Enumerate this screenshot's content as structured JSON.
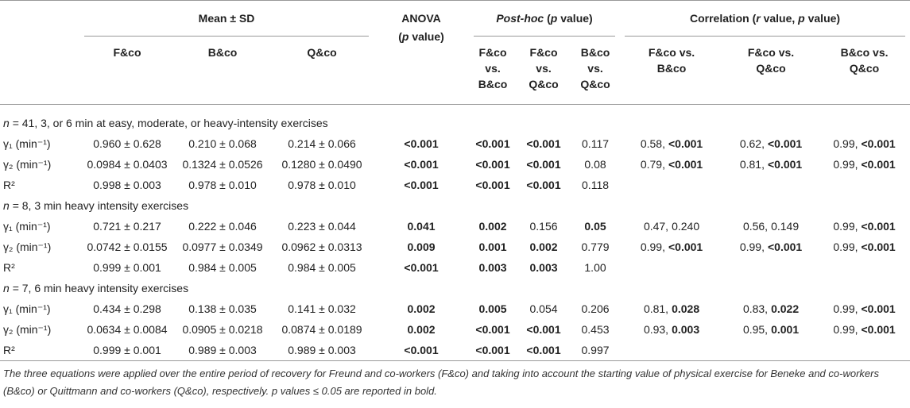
{
  "header": {
    "mean_sd": "Mean ± SD",
    "anova": {
      "title": "ANOVA",
      "note": [
        {
          "text": "("
        },
        {
          "text": "p",
          "italic": true
        },
        {
          "text": " value)"
        }
      ]
    },
    "post_hoc": [
      {
        "text": "Post-hoc",
        "italic": true
      },
      {
        "text": " ("
      },
      {
        "text": "p",
        "italic": true
      },
      {
        "text": " value)"
      }
    ],
    "correlation": [
      {
        "text": "Correlation ("
      },
      {
        "text": "r",
        "italic": true
      },
      {
        "text": " value, "
      },
      {
        "text": "p",
        "italic": true
      },
      {
        "text": " value)"
      }
    ],
    "columns": [
      "F&co",
      "B&co",
      "Q&co",
      "F&co vs. B&co",
      "F&co vs. Q&co",
      "B&co vs. Q&co",
      "F&co vs. B&co",
      "F&co vs. Q&co",
      "B&co vs. Q&co"
    ]
  },
  "sections": [
    {
      "variable": "n",
      "label": "= 41, 3, or 6 min at easy, moderate, or heavy-intensity exercises",
      "rows": [
        {
          "label": "γ₁ (min⁻¹)",
          "mean": [
            "0.960 ± 0.628",
            "0.210 ± 0.068",
            "0.214 ± 0.066"
          ],
          "p": [
            {
              "text": "<0.001",
              "bold": true
            },
            {
              "text": "<0.001",
              "bold": true
            },
            {
              "text": "<0.001",
              "bold": true
            },
            {
              "text": "0.117"
            }
          ],
          "correlation": [
            {
              "r": "0.58,",
              "p": "<0.001",
              "bold": true
            },
            {
              "r": "0.62,",
              "p": "<0.001",
              "bold": true
            },
            {
              "r": "0.99,",
              "p": "<0.001",
              "bold": true
            }
          ]
        },
        {
          "label": "γ₂ (min⁻¹)",
          "mean": [
            "0.0984 ± 0.0403",
            "0.1324 ± 0.0526",
            "0.1280 ± 0.0490"
          ],
          "p": [
            {
              "text": "<0.001",
              "bold": true
            },
            {
              "text": "<0.001",
              "bold": true
            },
            {
              "text": "<0.001",
              "bold": true
            },
            {
              "text": "0.08"
            }
          ],
          "correlation": [
            {
              "r": "0.79,",
              "p": "<0.001",
              "bold": true
            },
            {
              "r": "0.81,",
              "p": "<0.001",
              "bold": true
            },
            {
              "r": "0.99,",
              "p": "<0.001",
              "bold": true
            }
          ]
        },
        {
          "label": "R²",
          "mean": [
            "0.998 ± 0.003",
            "0.978 ± 0.010",
            "0.978 ± 0.010"
          ],
          "p": [
            {
              "text": "<0.001",
              "bold": true
            },
            {
              "text": "<0.001",
              "bold": true
            },
            {
              "text": "<0.001",
              "bold": true
            },
            {
              "text": "0.118"
            }
          ]
        }
      ]
    },
    {
      "variable": "n",
      "label": "= 8, 3 min heavy intensity exercises",
      "rows": [
        {
          "label": "γ₁ (min⁻¹)",
          "mean": [
            "0.721 ± 0.217",
            "0.222 ± 0.046",
            "0.223 ± 0.044"
          ],
          "p": [
            {
              "text": "0.041",
              "bold": true
            },
            {
              "text": "0.002",
              "bold": true
            },
            {
              "text": "0.156"
            },
            {
              "text": "0.05",
              "bold": true
            }
          ],
          "correlation": [
            {
              "r": "0.47,",
              "p": "0.240"
            },
            {
              "r": "0.56,",
              "p": "0.149"
            },
            {
              "r": "0.99,",
              "p": "<0.001",
              "bold": true
            }
          ]
        },
        {
          "label": "γ₂ (min⁻¹)",
          "mean": [
            "0.0742 ± 0.0155",
            "0.0977 ± 0.0349",
            "0.0962 ± 0.0313"
          ],
          "p": [
            {
              "text": "0.009",
              "bold": true
            },
            {
              "text": "0.001",
              "bold": true
            },
            {
              "text": "0.002",
              "bold": true
            },
            {
              "text": "0.779"
            }
          ],
          "correlation": [
            {
              "r": "0.99,",
              "p": "<0.001",
              "bold": true
            },
            {
              "r": "0.99,",
              "p": "<0.001",
              "bold": true
            },
            {
              "r": "0.99,",
              "p": "<0.001",
              "bold": true
            }
          ]
        },
        {
          "label": "R²",
          "mean": [
            "0.999 ± 0.001",
            "0.984 ± 0.005",
            "0.984 ± 0.005"
          ],
          "p": [
            {
              "text": "<0.001",
              "bold": true
            },
            {
              "text": "0.003",
              "bold": true
            },
            {
              "text": "0.003",
              "bold": true
            },
            {
              "text": "1.00"
            }
          ]
        }
      ]
    },
    {
      "variable": "n",
      "label": "= 7, 6 min heavy intensity exercises",
      "rows": [
        {
          "label": "γ₁ (min⁻¹)",
          "mean": [
            "0.434 ± 0.298",
            "0.138 ± 0.035",
            "0.141 ± 0.032"
          ],
          "p": [
            {
              "text": "0.002",
              "bold": true
            },
            {
              "text": "0.005",
              "bold": true
            },
            {
              "text": "0.054"
            },
            {
              "text": "0.206"
            }
          ],
          "correlation": [
            {
              "r": "0.81,",
              "p": "0.028",
              "bold": true
            },
            {
              "r": "0.83,",
              "p": "0.022",
              "bold": true
            },
            {
              "r": "0.99,",
              "p": "<0.001",
              "bold": true
            }
          ]
        },
        {
          "label": "γ₂ (min⁻¹)",
          "mean": [
            "0.0634 ± 0.0084",
            "0.0905 ± 0.0218",
            "0.0874 ± 0.0189"
          ],
          "p": [
            {
              "text": "0.002",
              "bold": true
            },
            {
              "text": "<0.001",
              "bold": true
            },
            {
              "text": "<0.001",
              "bold": true
            },
            {
              "text": "0.453"
            }
          ],
          "correlation": [
            {
              "r": "0.93,",
              "p": "0.003",
              "bold": true
            },
            {
              "r": "0.95,",
              "p": "0.001",
              "bold": true
            },
            {
              "r": "0.99,",
              "p": "<0.001",
              "bold": true
            }
          ]
        },
        {
          "label": "R²",
          "mean": [
            "0.999 ± 0.001",
            "0.989 ± 0.003",
            "0.989 ± 0.003"
          ],
          "p": [
            {
              "text": "<0.001",
              "bold": true
            },
            {
              "text": "<0.001",
              "bold": true
            },
            {
              "text": "<0.001",
              "bold": true
            },
            {
              "text": "0.997"
            }
          ]
        }
      ]
    }
  ],
  "footnote": "The three equations were applied over the entire period of recovery for Freund and co-workers (F&co) and taking into account the starting value of physical exercise for Beneke and co-workers (B&co) or Quittmann and co-workers (Q&co), respectively. p values ≤ 0.05 are reported in bold."
}
